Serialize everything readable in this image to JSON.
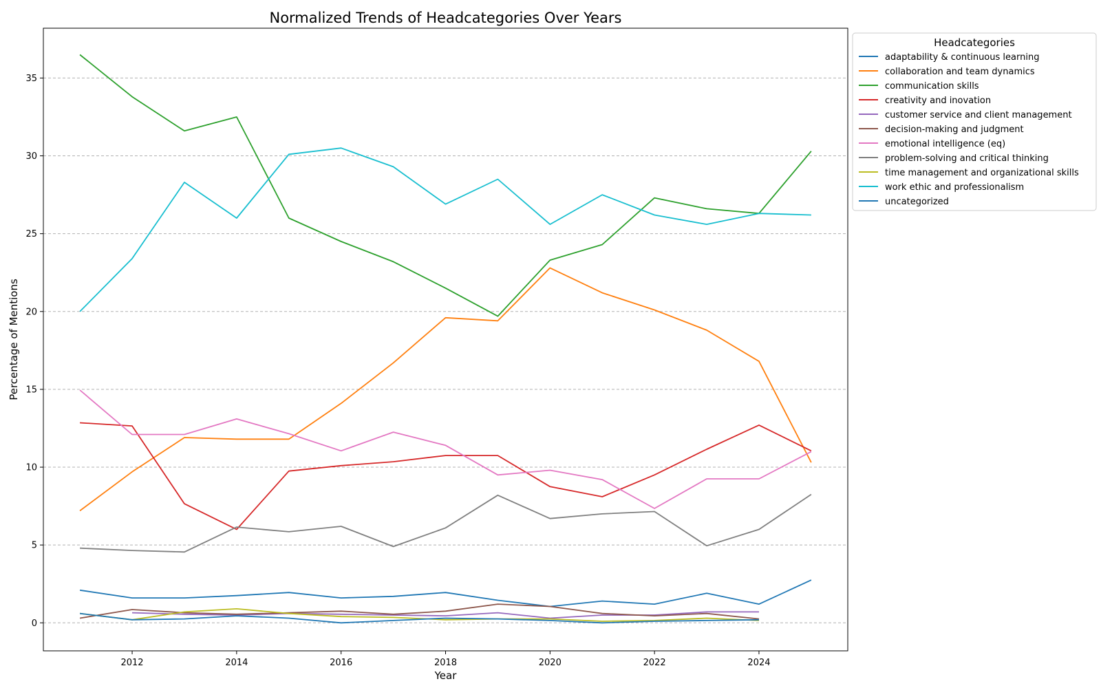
{
  "chart_data": {
    "type": "line",
    "title": "Normalized Trends of Headcategories Over Years",
    "xlabel": "Year",
    "ylabel": "Percentage of Mentions",
    "xlim": [
      2010.3,
      2025.7
    ],
    "ylim": [
      -1.8,
      38.2
    ],
    "xticks": [
      2012,
      2014,
      2016,
      2018,
      2020,
      2022,
      2024
    ],
    "yticks": [
      0,
      5,
      10,
      15,
      20,
      25,
      30,
      35
    ],
    "grid": "horizontal dashed",
    "legend": {
      "title": "Headcategories",
      "placement": "outside top-right"
    },
    "series": [
      {
        "name": "adaptability & continuous learning",
        "color": "#1f77b4",
        "x": [
          2011,
          2012,
          2013,
          2014,
          2015,
          2016,
          2017,
          2018,
          2019,
          2020,
          2021,
          2022,
          2023,
          2024,
          2025
        ],
        "values": [
          2.1,
          1.6,
          1.6,
          1.75,
          1.95,
          1.6,
          1.7,
          1.95,
          1.45,
          1.05,
          1.4,
          1.2,
          1.9,
          1.2,
          2.75
        ]
      },
      {
        "name": "collaboration and team dynamics",
        "color": "#ff7f0e",
        "x": [
          2011,
          2012,
          2013,
          2014,
          2015,
          2016,
          2017,
          2018,
          2019,
          2020,
          2021,
          2022,
          2023,
          2024,
          2025
        ],
        "values": [
          7.2,
          9.7,
          11.9,
          11.8,
          11.8,
          14.1,
          16.7,
          19.6,
          19.4,
          22.8,
          21.2,
          20.1,
          18.8,
          16.8,
          10.3
        ]
      },
      {
        "name": "communication skills",
        "color": "#2ca02c",
        "x": [
          2011,
          2012,
          2013,
          2014,
          2015,
          2016,
          2017,
          2018,
          2019,
          2020,
          2021,
          2022,
          2023,
          2024,
          2025
        ],
        "values": [
          36.5,
          33.8,
          31.6,
          32.5,
          26.0,
          24.5,
          23.2,
          21.5,
          19.7,
          23.3,
          24.3,
          27.3,
          26.6,
          26.3,
          30.3
        ]
      },
      {
        "name": "creativity and inovation",
        "color": "#d62728",
        "x": [
          2011,
          2012,
          2013,
          2014,
          2015,
          2016,
          2017,
          2018,
          2019,
          2020,
          2021,
          2022,
          2023,
          2024,
          2025
        ],
        "values": [
          12.85,
          12.65,
          7.65,
          6.0,
          9.75,
          10.1,
          10.35,
          10.75,
          10.75,
          8.75,
          8.1,
          9.5,
          11.15,
          12.7,
          11.05
        ]
      },
      {
        "name": "customer service and client management",
        "color": "#9467bd",
        "x": [
          2012,
          2013,
          2014,
          2015,
          2016,
          2017,
          2018,
          2019,
          2020,
          2021,
          2022,
          2023,
          2024
        ],
        "values": [
          0.65,
          0.55,
          0.5,
          0.6,
          0.55,
          0.5,
          0.45,
          0.65,
          0.3,
          0.5,
          0.5,
          0.7,
          0.7
        ]
      },
      {
        "name": "decision-making and judgment",
        "color": "#8c564b",
        "x": [
          2011,
          2012,
          2013,
          2014,
          2015,
          2016,
          2017,
          2018,
          2019,
          2020,
          2021,
          2022,
          2023,
          2024
        ],
        "values": [
          0.3,
          0.85,
          0.65,
          0.55,
          0.65,
          0.75,
          0.55,
          0.75,
          1.2,
          1.05,
          0.6,
          0.45,
          0.6,
          0.25
        ]
      },
      {
        "name": "emotional intelligence (eq)",
        "color": "#e377c2",
        "x": [
          2011,
          2012,
          2013,
          2014,
          2015,
          2016,
          2017,
          2018,
          2019,
          2020,
          2021,
          2022,
          2023,
          2024,
          2025
        ],
        "values": [
          14.95,
          12.1,
          12.1,
          13.1,
          12.15,
          11.05,
          12.25,
          11.4,
          9.5,
          9.8,
          9.2,
          7.35,
          9.25,
          9.25,
          11.0
        ]
      },
      {
        "name": "problem-solving and critical thinking",
        "color": "#7f7f7f",
        "x": [
          2011,
          2012,
          2013,
          2014,
          2015,
          2016,
          2017,
          2018,
          2019,
          2020,
          2021,
          2022,
          2023,
          2024,
          2025
        ],
        "values": [
          4.8,
          4.65,
          4.55,
          6.15,
          5.85,
          6.2,
          4.9,
          6.1,
          8.2,
          6.7,
          7.0,
          7.15,
          4.95,
          6.0,
          8.25
        ]
      },
      {
        "name": "time management and organizational skills",
        "color": "#bcbd22",
        "x": [
          2011,
          2012,
          2013,
          2014,
          2015,
          2016,
          2017,
          2018,
          2019,
          2020,
          2021,
          2022,
          2023,
          2024
        ],
        "values": [
          0.6,
          0.2,
          0.7,
          0.9,
          0.6,
          0.4,
          0.35,
          0.2,
          0.25,
          0.25,
          0.1,
          0.15,
          0.3,
          0.15
        ]
      },
      {
        "name": "work ethic and professionalism",
        "color": "#17becf",
        "x": [
          2011,
          2012,
          2013,
          2014,
          2015,
          2016,
          2017,
          2018,
          2019,
          2020,
          2021,
          2022,
          2023,
          2024,
          2025
        ],
        "values": [
          20.0,
          23.4,
          28.3,
          26.0,
          30.1,
          30.5,
          29.3,
          26.9,
          28.5,
          25.6,
          27.5,
          26.2,
          25.6,
          26.3,
          26.2
        ]
      },
      {
        "name": "uncategorized",
        "color": "#1f77b4",
        "x": [
          2011,
          2012,
          2013,
          2014,
          2015,
          2016,
          2017,
          2018,
          2019,
          2020,
          2021,
          2022,
          2023,
          2024
        ],
        "values": [
          0.6,
          0.2,
          0.25,
          0.45,
          0.3,
          0.0,
          0.15,
          0.3,
          0.25,
          0.15,
          0.0,
          0.1,
          0.15,
          0.2
        ]
      }
    ]
  }
}
